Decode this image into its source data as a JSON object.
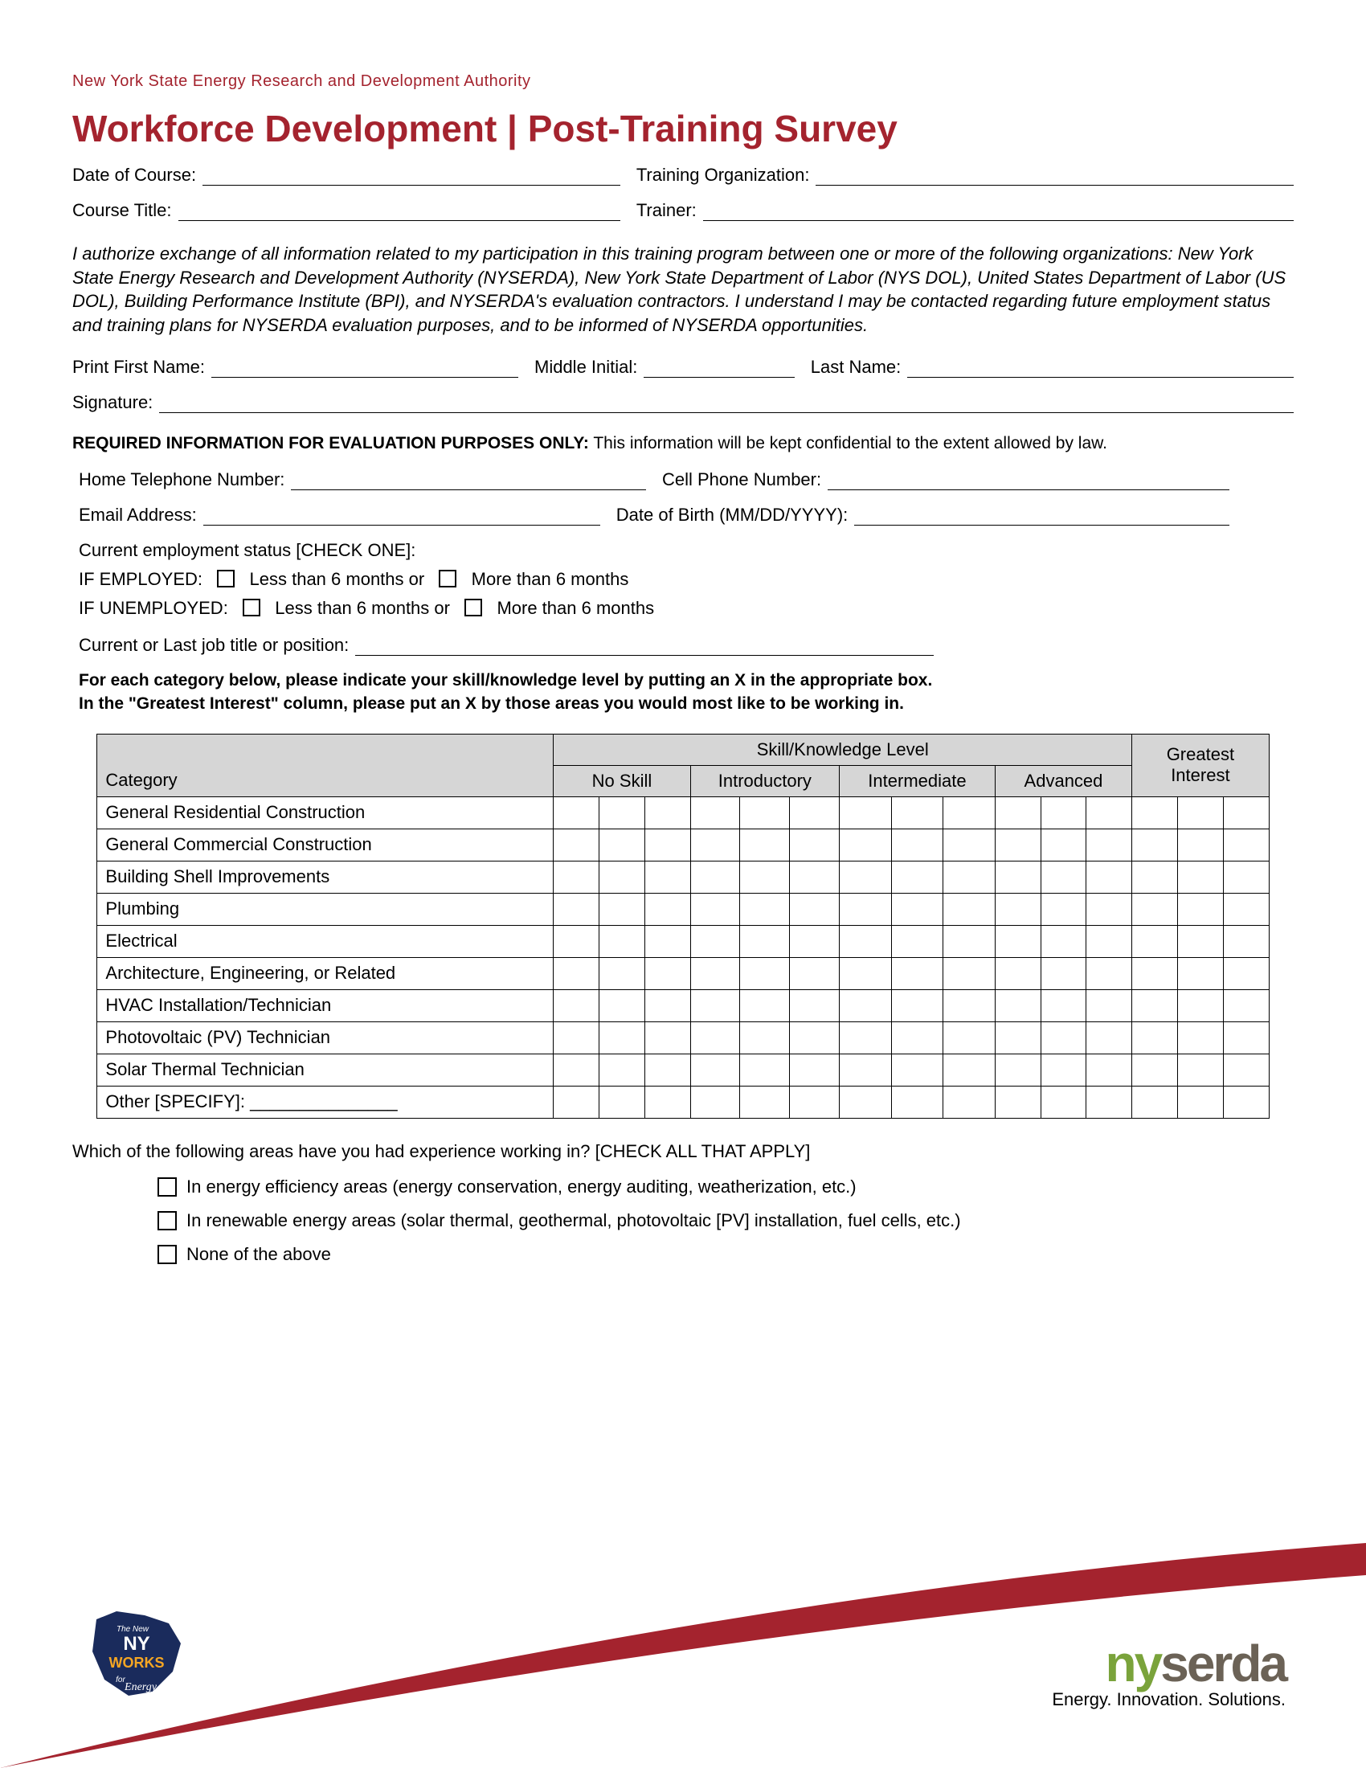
{
  "colors": {
    "brand_red": "#a4232e",
    "table_header_bg": "#d6d6d6",
    "border": "#000000",
    "nyserda_green": "#7aa33b",
    "nyserda_brown": "#6b6256",
    "text": "#000000",
    "bg": "#ffffff"
  },
  "header": {
    "org": "New York State Energy Research and Development Authority",
    "title": "Workforce Development  |  Post-Training Survey"
  },
  "fields": {
    "date_label": "Date of Course:",
    "training_org_label": "Training Organization:",
    "course_title_label": "Course Title:",
    "trainer_label": "Trainer:",
    "first_name_label": "Print First Name:",
    "mi_label": "Middle Initial:",
    "last_name_label": "Last Name:",
    "signature_label": "Signature:",
    "home_phone_label": "Home Telephone Number:",
    "cell_phone_label": "Cell Phone Number:",
    "email_label": "Email Address:",
    "dob_label": "Date of Birth (MM/DD/YYYY):",
    "job_title_label": "Current or Last job title or position:"
  },
  "authorization_text": "I authorize exchange of all information related to my participation in this training program between one or more of the following organizations: New York State Energy Research and Development Authority (NYSERDA), New York State Department of Labor (NYS DOL), United States Department of Labor (US DOL), Building Performance Institute (BPI), and NYSERDA's evaluation contractors. I understand I may be contacted regarding future employment status and training plans for NYSERDA evaluation purposes, and to be informed of NYSERDA opportunities.",
  "required_info": {
    "bold": "REQUIRED INFORMATION FOR EVALUATION PURPOSES ONLY:",
    "rest": " This information will be kept confidential to the extent allowed by law."
  },
  "employment": {
    "status_label": "Current employment status [CHECK ONE]:",
    "employed_label": "IF EMPLOYED:",
    "unemployed_label": "IF UNEMPLOYED:",
    "lt6": "Less than 6 months  or",
    "gt6": "More than 6 months"
  },
  "instructions": {
    "line1": "For each category below, please indicate your skill/knowledge level by putting an X in the appropriate box.",
    "line2": "In the \"Greatest Interest\" column, please put an X by those areas you would most like to be working in."
  },
  "table": {
    "header_skill": "Skill/Knowledge Level",
    "header_interest": "Greatest Interest",
    "header_category": "Category",
    "levels": [
      "No Skill",
      "Introductory",
      "Intermediate",
      "Advanced"
    ],
    "categories": [
      "General Residential Construction",
      "General Commercial Construction",
      "Building Shell Improvements",
      "Plumbing",
      "Electrical",
      "Architecture, Engineering, or Related",
      "HVAC Installation/Technician",
      "Photovoltaic (PV) Technician",
      "Solar Thermal Technician",
      "Other [SPECIFY]: _______________"
    ],
    "cols_per_section": 3,
    "interest_cols": 3
  },
  "experience": {
    "question": "Which of the following areas have you had experience working in? [CHECK ALL THAT APPLY]",
    "options": [
      "In energy efficiency areas (energy conservation, energy auditing, weatherization, etc.)",
      "In renewable energy areas (solar thermal, geothermal, photovoltaic [PV] installation, fuel cells, etc.)",
      "None of the above"
    ]
  },
  "footer": {
    "ny_works": {
      "line1": "NY",
      "line2": "WORKS",
      "line3": "Energy",
      "the_new": "The New",
      "for": "for"
    },
    "nyserda": {
      "ny": "ny",
      "serda": "serda",
      "tagline": "Energy. Innovation. Solutions."
    }
  }
}
